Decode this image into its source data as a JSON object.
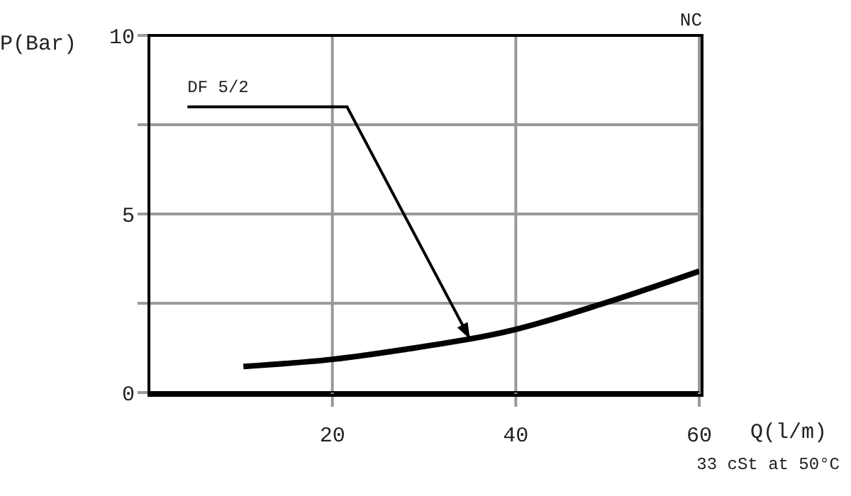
{
  "chart_data": {
    "type": "line",
    "xlabel": "Q(l/m)",
    "ylabel": "P(Bar)",
    "x": [
      10.3,
      20,
      27.7,
      40,
      49.6,
      60
    ],
    "series": [
      {
        "color": "#000000",
        "values": [
          0.73,
          0.93,
          1.2,
          1.77,
          2.5,
          3.4
        ]
      }
    ],
    "xlim": [
      0,
      60
    ],
    "xticks": [
      20,
      40,
      60
    ],
    "ylim": [
      0,
      10
    ],
    "yticks": [
      0,
      {
        "value": 2.5,
        "label": null
      },
      5,
      {
        "value": 7.5,
        "label": null
      },
      10
    ],
    "grid": true,
    "annotations": [
      "NC",
      {
        "text": "DF 5/2",
        "x": 35,
        "y": 1.5
      },
      "33 cSt at 50°C"
    ]
  }
}
